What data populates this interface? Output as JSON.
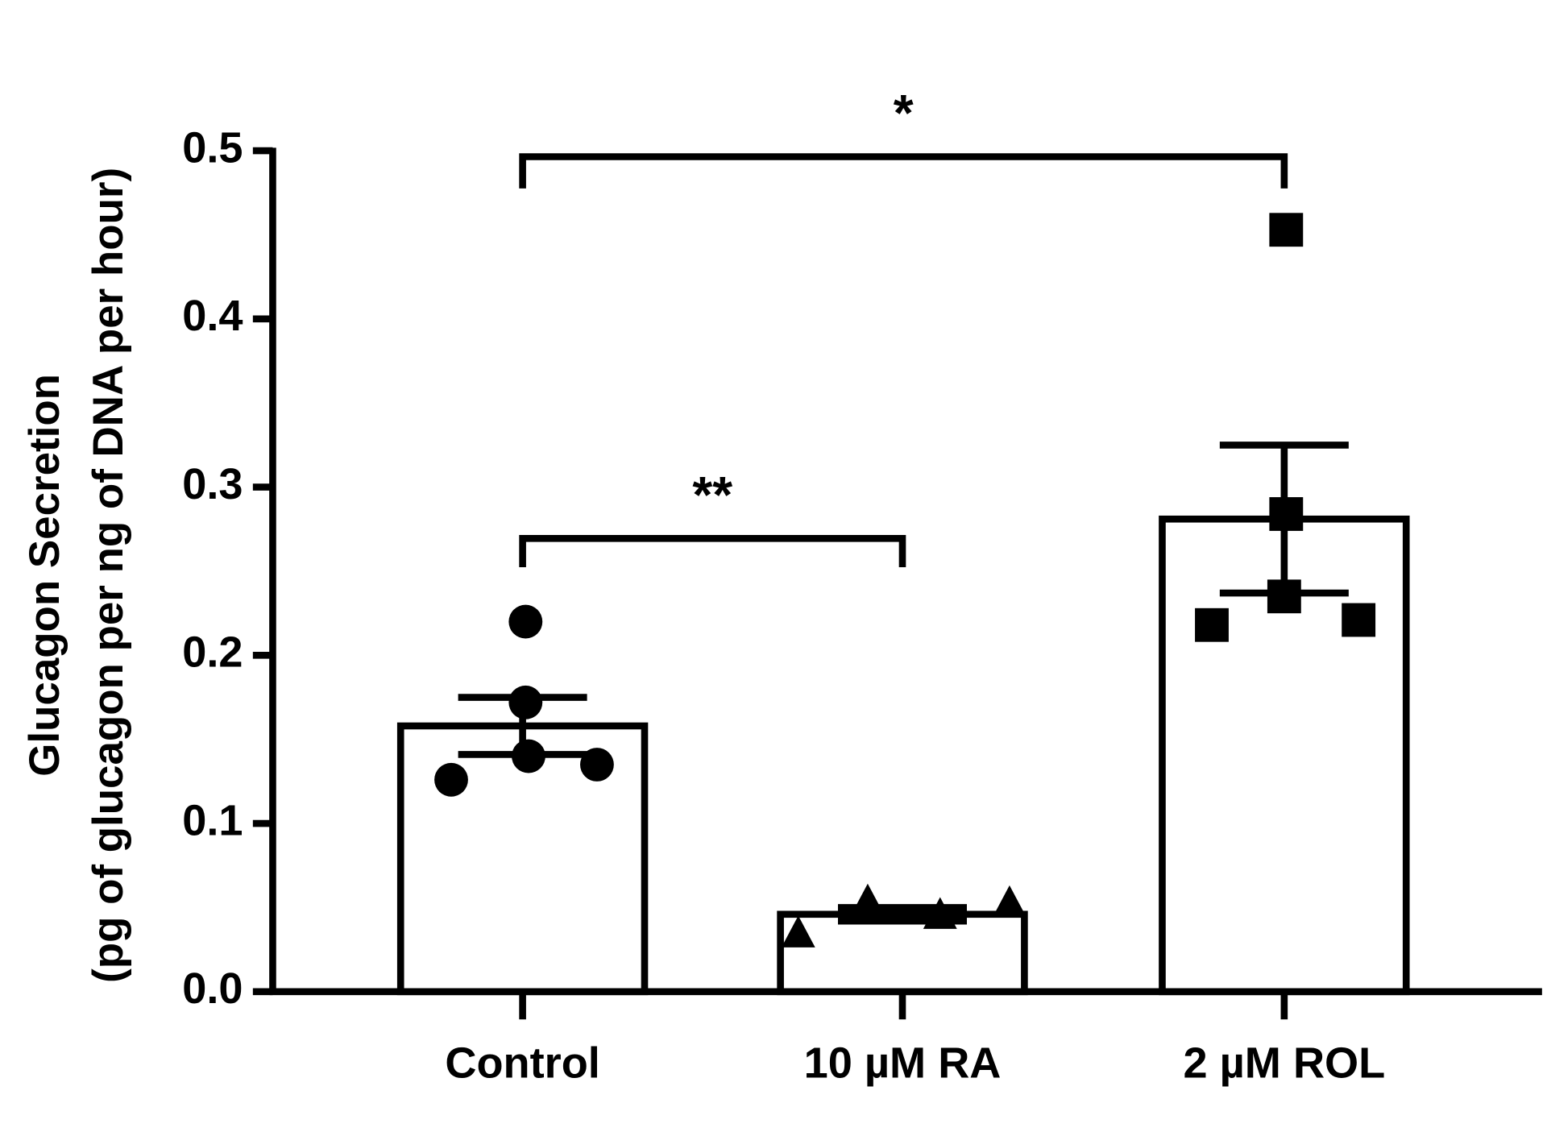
{
  "chart_data": {
    "type": "bar",
    "y_label": [
      "Glucagon Secretion",
      "(pg of glucagon per ng of DNA per hour)"
    ],
    "categories": [
      "Control",
      "10 µM RA",
      "2 µM ROL"
    ],
    "values": [
      0.158,
      0.046,
      0.281
    ],
    "errors": [
      0.017,
      0.004,
      0.044
    ],
    "points": [
      [
        0.126,
        0.22,
        0.172,
        0.14,
        0.135
      ],
      [
        0.034,
        0.053,
        0.045,
        0.052
      ],
      [
        0.218,
        0.453,
        0.284,
        0.235,
        0.221
      ]
    ],
    "markers": [
      "circle",
      "triangle",
      "square"
    ],
    "color": "#ffffff",
    "edge_color": "#000000",
    "ylim": [
      0,
      0.5
    ],
    "yticks": [
      {
        "value": 0,
        "label": "0.0"
      },
      0.1,
      0.2,
      0.3,
      0.4,
      0.5
    ],
    "annotations": [
      "**",
      "*"
    ]
  }
}
